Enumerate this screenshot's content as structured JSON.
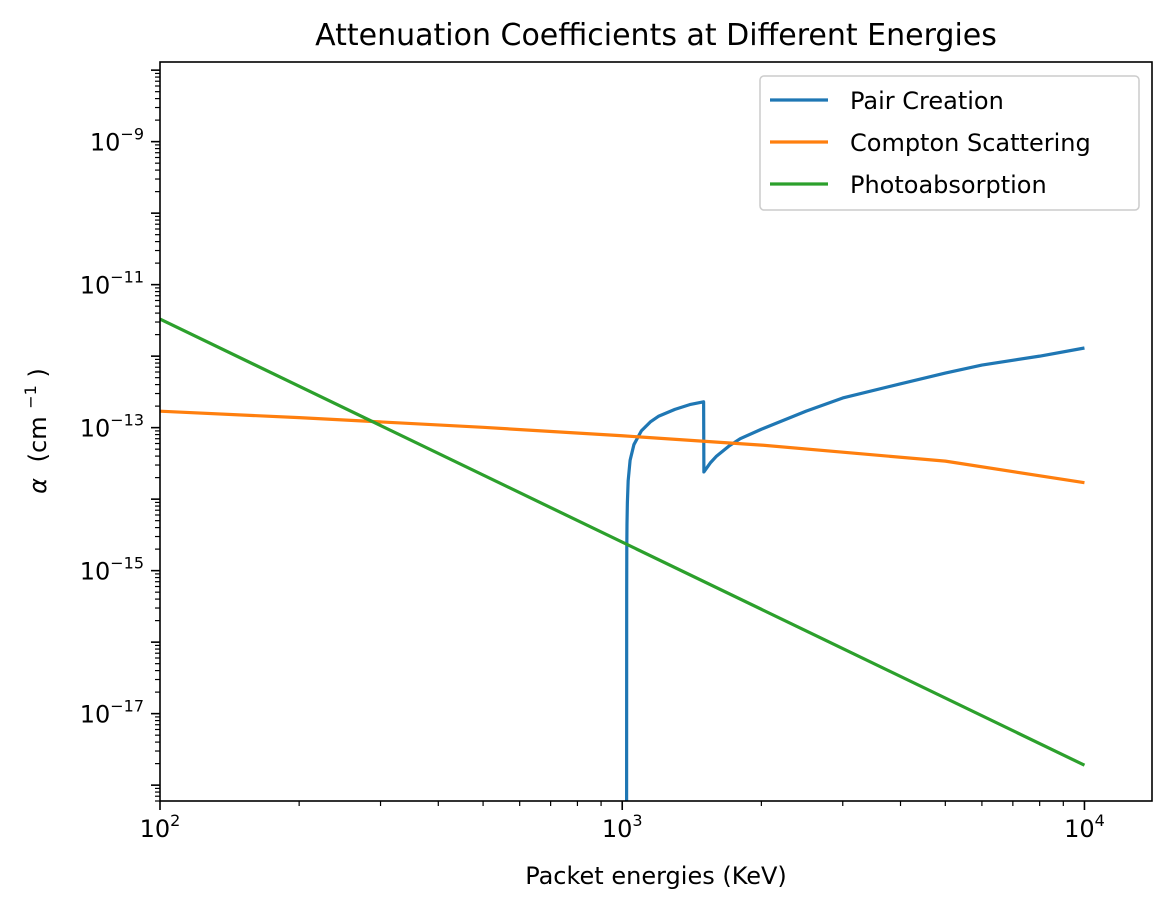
{
  "chart_data": {
    "type": "line",
    "title": "Attenuation Coefficients at Different Energies",
    "xlabel": "Packet energies (KeV)",
    "ylabel_symbol": "α",
    "ylabel_unit": "(cm",
    "ylabel_unit_exp": "−1",
    "ylabel_unit_close": ")",
    "x_scale": "log",
    "y_scale": "log",
    "xlim": [
      100,
      14000
    ],
    "ylim": [
      6e-19,
      1.3e-08
    ],
    "x_ticks": [
      {
        "value": 100,
        "base": "10",
        "exp": "2"
      },
      {
        "value": 1000,
        "base": "10",
        "exp": "3"
      },
      {
        "value": 10000,
        "base": "10",
        "exp": "4"
      }
    ],
    "y_ticks": [
      {
        "value": 1e-17,
        "base": "10",
        "exp": "−17"
      },
      {
        "value": 1e-15,
        "base": "10",
        "exp": "−15"
      },
      {
        "value": 1e-13,
        "base": "10",
        "exp": "−13"
      },
      {
        "value": 1e-11,
        "base": "10",
        "exp": "−11"
      },
      {
        "value": 1e-09,
        "base": "10",
        "exp": "−9"
      }
    ],
    "grid": false,
    "legend_position": "top-right",
    "series": [
      {
        "name": "Pair Creation",
        "color": "#1f77b4",
        "x": [
          1022,
          1022.5,
          1023,
          1024,
          1026,
          1030,
          1040,
          1060,
          1100,
          1150,
          1200,
          1300,
          1400,
          1500,
          1502,
          1550,
          1600,
          1700,
          1800,
          2000,
          2500,
          3000,
          4000,
          5000,
          6000,
          8000,
          10000
        ],
        "y": [
          6e-19,
          5e-16,
          2e-15,
          4.5e-15,
          9e-15,
          1.8e-14,
          3.5e-14,
          5.8e-14,
          9e-14,
          1.2e-13,
          1.45e-13,
          1.8e-13,
          2.1e-13,
          2.3e-13,
          2.4e-14,
          3.2e-14,
          4e-14,
          5.5e-14,
          7e-14,
          9.5e-14,
          1.7e-13,
          2.6e-13,
          4.1e-13,
          5.8e-13,
          7.5e-13,
          1e-12,
          1.3e-12
        ]
      },
      {
        "name": "Compton Scattering",
        "color": "#ff7f0e",
        "x": [
          100,
          200,
          500,
          1000,
          2000,
          5000,
          10000
        ],
        "y": [
          1.7e-13,
          1.38e-13,
          1.01e-13,
          7.7e-14,
          5.7e-14,
          3.4e-14,
          1.7e-14
        ]
      },
      {
        "name": "Photoabsorption",
        "color": "#2ca02c",
        "x": [
          100,
          10000
        ],
        "y": [
          3.3e-12,
          1.9e-18
        ]
      }
    ]
  }
}
